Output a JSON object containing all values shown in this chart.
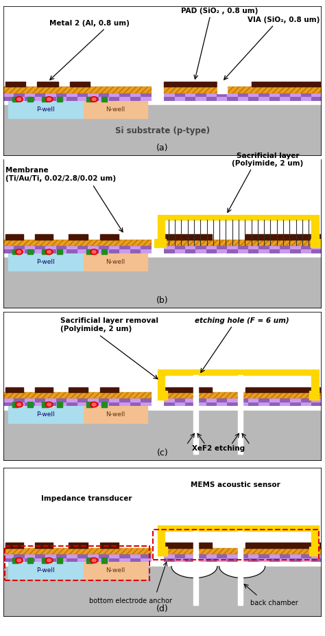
{
  "fig_width": 4.74,
  "fig_height": 9.26,
  "background": "#ffffff",
  "colors": {
    "substrate": "#b8b8b8",
    "p_well": "#aaddee",
    "n_well": "#f4c090",
    "check1": "#9060b8",
    "check2": "#cc99ee",
    "metal_face": "#e8a020",
    "metal_edge": "#c07000",
    "dark_cap": "#4a1500",
    "green_contact": "#228b22",
    "red_dot": "#dd0000",
    "yellow": "#ffd700",
    "white": "#ffffff",
    "black": "#000000",
    "red_box": "#dd0000"
  },
  "panel_labels": [
    "(a)",
    "(b)",
    "(c)",
    "(d)"
  ]
}
